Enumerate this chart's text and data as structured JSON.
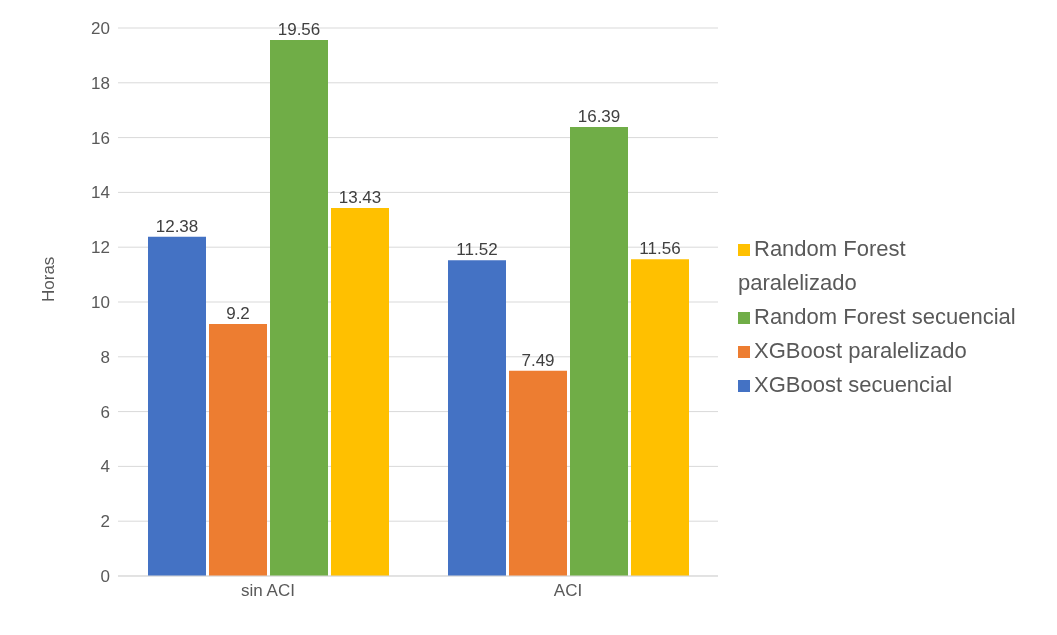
{
  "chart_data": {
    "type": "bar",
    "ylabel": "Horas",
    "categories": [
      "sin ACI",
      "ACI"
    ],
    "series": [
      {
        "name": "XGBoost secuencial",
        "color": "#4472c4",
        "values": [
          12.38,
          11.52
        ]
      },
      {
        "name": "XGBoost paralelizado",
        "color": "#ed7d31",
        "values": [
          9.2,
          7.49
        ]
      },
      {
        "name": "Random Forest secuencial",
        "color": "#70ad47",
        "values": [
          19.56,
          16.39
        ]
      },
      {
        "name": "Random Forest paralelizado",
        "color": "#ffc000",
        "values": [
          13.43,
          11.56
        ]
      }
    ],
    "ylim": [
      0,
      20
    ],
    "yticks": [
      0,
      2,
      4,
      6,
      8,
      10,
      12,
      14,
      16,
      18,
      20
    ],
    "grid": "y",
    "legend": "right",
    "data_labels": true
  }
}
